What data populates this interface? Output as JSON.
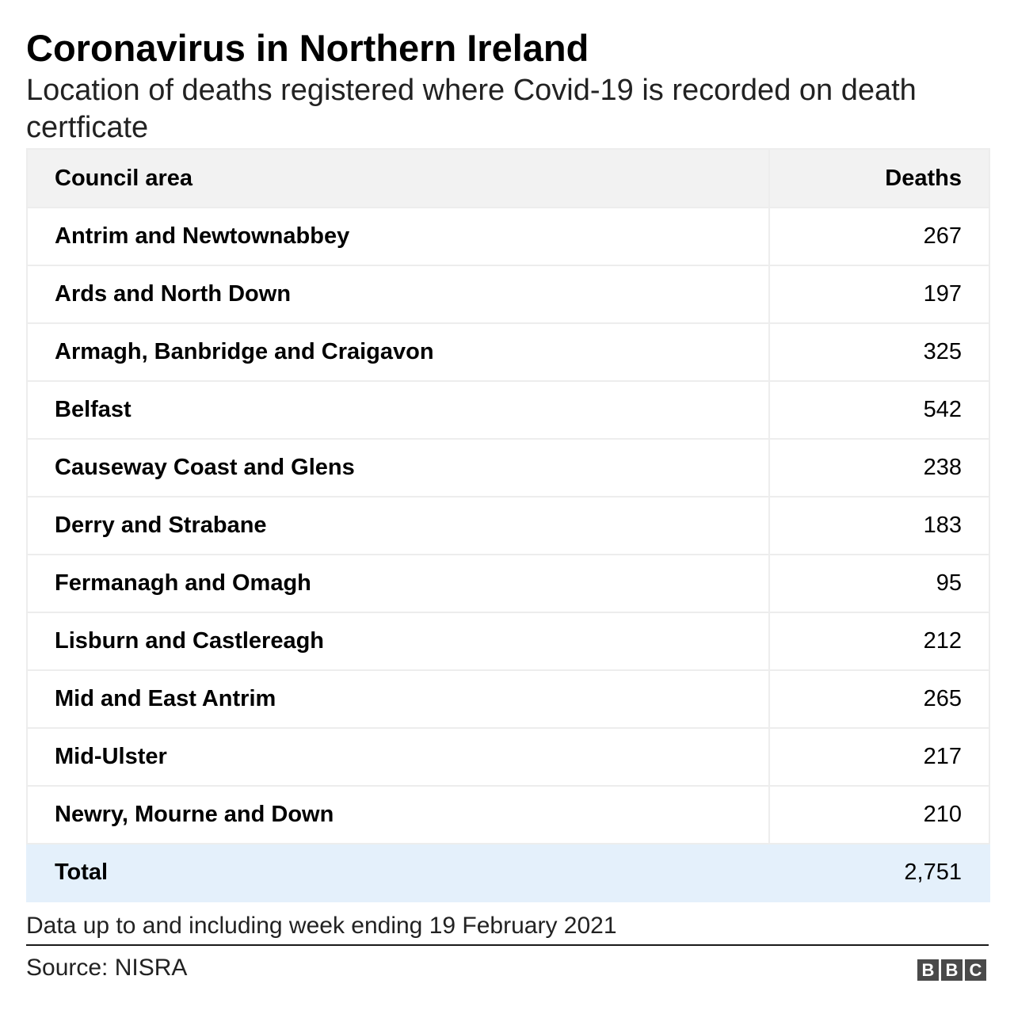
{
  "header": {
    "title": "Coronavirus in Northern Ireland",
    "subtitle": "Location of deaths registered where Covid-19 is recorded on death certficate"
  },
  "chart_data": {
    "type": "table",
    "title": "Coronavirus in Northern Ireland",
    "subtitle": "Location of deaths registered where Covid-19 is recorded on death certficate",
    "columns": [
      "Council area",
      "Deaths"
    ],
    "rows": [
      {
        "area": "Antrim and Newtownabbey",
        "deaths": "267"
      },
      {
        "area": "Ards and North Down",
        "deaths": "197"
      },
      {
        "area": "Armagh, Banbridge and Craigavon",
        "deaths": "325"
      },
      {
        "area": "Belfast",
        "deaths": "542"
      },
      {
        "area": "Causeway Coast and Glens",
        "deaths": "238"
      },
      {
        "area": "Derry and Strabane",
        "deaths": "183"
      },
      {
        "area": "Fermanagh and Omagh",
        "deaths": "95"
      },
      {
        "area": "Lisburn and Castlereagh",
        "deaths": "212"
      },
      {
        "area": "Mid and East Antrim",
        "deaths": "265"
      },
      {
        "area": "Mid-Ulster",
        "deaths": "217"
      },
      {
        "area": "Newry, Mourne and Down",
        "deaths": "210"
      }
    ],
    "total": {
      "label": "Total",
      "deaths": "2,751"
    }
  },
  "footer": {
    "note": "Data up to and including week ending 19 February 2021",
    "source": "Source: NISRA",
    "logo_letters": [
      "B",
      "B",
      "C"
    ]
  },
  "colors": {
    "header_bg": "#f2f2f2",
    "total_bg": "#e4f0fb",
    "border": "#ededed",
    "logo_bg": "#4a4a4a"
  }
}
